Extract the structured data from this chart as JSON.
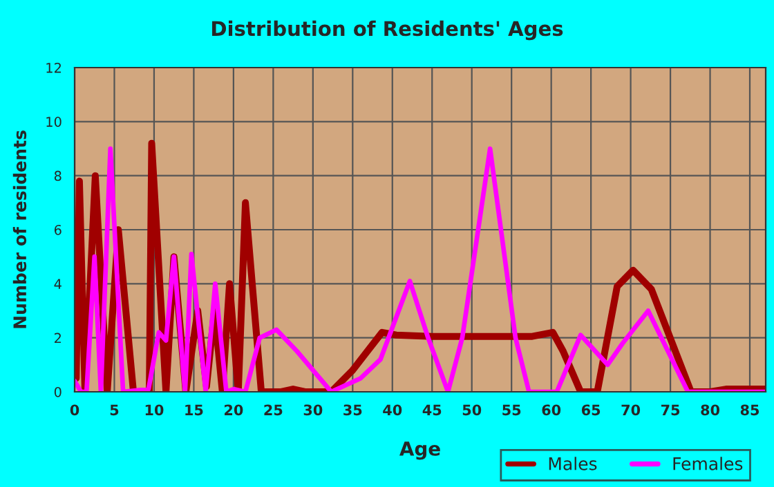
{
  "chart_data": {
    "type": "line",
    "title": "Distribution of Residents' Ages",
    "xlabel": "Age",
    "ylabel": "Number of residents",
    "xlim": [
      0,
      87
    ],
    "xticks": [
      0,
      5,
      10,
      15,
      20,
      25,
      30,
      35,
      40,
      45,
      50,
      55,
      60,
      65,
      70,
      75,
      80,
      85
    ],
    "ylim": [
      0,
      12
    ],
    "yticks": [
      0,
      2,
      4,
      6,
      8,
      10,
      12
    ],
    "grid": true,
    "legend": "bottom right",
    "series": [
      {
        "name": "Males",
        "color": "#a00000",
        "x": [
          0,
          0.2,
          0.6,
          1.3,
          2.6,
          4.1,
          5.5,
          7.4,
          9.4,
          9.7,
          11.5,
          12.5,
          14,
          15.5,
          16.6,
          17.6,
          18.6,
          19.5,
          20.6,
          21.5,
          23.5,
          26,
          27.5,
          29,
          32.3,
          35,
          38.7,
          40.5,
          45,
          50,
          57.6,
          60.2,
          61.5,
          63.7,
          65.8,
          68.3,
          70.3,
          72.6,
          77.6,
          80,
          82,
          87
        ],
        "values": [
          6,
          0.5,
          7.8,
          0,
          8,
          0,
          6,
          0,
          0,
          9.2,
          0,
          5,
          0,
          3,
          0.2,
          3,
          0,
          4,
          0,
          7,
          0,
          0,
          0.1,
          0,
          0,
          0.8,
          2.2,
          2.1,
          2.05,
          2.05,
          2.05,
          2.2,
          1.5,
          0,
          0,
          3.9,
          4.5,
          3.8,
          0,
          0,
          0.1,
          0.1
        ]
      },
      {
        "name": "Females",
        "color": "#ff00ff",
        "x": [
          0,
          0.8,
          1.5,
          2.5,
          3.3,
          4.5,
          6.1,
          9.3,
          10.6,
          11.5,
          12.5,
          13.9,
          14.7,
          16.5,
          17.7,
          19.1,
          20,
          21.5,
          23.3,
          25.4,
          28,
          32.3,
          36,
          38.5,
          42.2,
          44.5,
          47,
          48.8,
          52.3,
          55.5,
          57.2,
          60.7,
          63.7,
          67.1,
          69,
          72.2,
          77.2,
          87
        ],
        "values": [
          0.4,
          0,
          0,
          5,
          0,
          9,
          0,
          0.1,
          2.2,
          1.9,
          5,
          0,
          5.1,
          0,
          4,
          0,
          0.1,
          0,
          2,
          2.3,
          1.5,
          0,
          0.5,
          1.2,
          4.1,
          2,
          0,
          2,
          9,
          2,
          0,
          0,
          2.1,
          1,
          1.8,
          3,
          0,
          0
        ]
      }
    ]
  }
}
